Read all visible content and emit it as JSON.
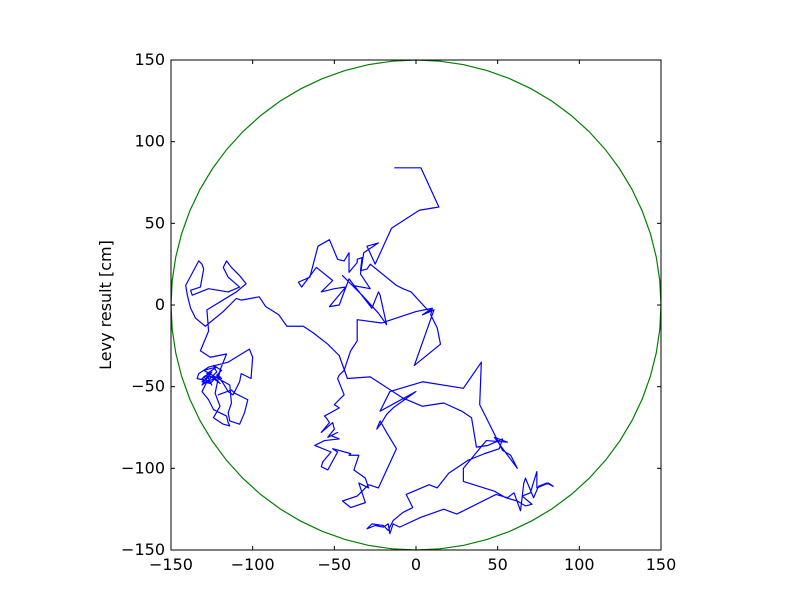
{
  "chart_data": {
    "type": "line",
    "title": "",
    "xlabel": "",
    "ylabel": "Levy result [cm]",
    "xlim": [
      -150,
      150
    ],
    "ylim": [
      -150,
      150
    ],
    "xticks": [
      -150,
      -100,
      -50,
      0,
      50,
      100,
      150
    ],
    "yticks": [
      -150,
      -100,
      -50,
      0,
      50,
      100,
      150
    ],
    "grid": false,
    "legend": "none",
    "series": [
      {
        "kind": "boundary-circle",
        "center": [
          0,
          0
        ],
        "radius": 150,
        "color": "#008000"
      },
      {
        "kind": "random-walk",
        "color": "#0000ff",
        "points": [
          [
            -13,
            84
          ],
          [
            3,
            84
          ],
          [
            14,
            60
          ],
          [
            2,
            58
          ],
          [
            -15,
            47
          ],
          [
            -25,
            25
          ],
          [
            -30,
            36
          ],
          [
            -23,
            38
          ],
          [
            -32,
            32
          ],
          [
            -34,
            19
          ],
          [
            -28,
            10
          ],
          [
            -39,
            12
          ],
          [
            -45,
            18
          ],
          [
            -33,
            6
          ],
          [
            -23,
            -5
          ],
          [
            -18,
            -12
          ],
          [
            -22,
            6
          ],
          [
            -23,
            8
          ],
          [
            -27,
            -2
          ],
          [
            -41,
            16
          ],
          [
            -47,
            0
          ],
          [
            -53,
            -1
          ],
          [
            -43,
            11
          ],
          [
            -50,
            10
          ],
          [
            -58,
            8
          ],
          [
            -51,
            15
          ],
          [
            -61,
            23
          ],
          [
            -70,
            11
          ],
          [
            -72,
            14
          ],
          [
            -65,
            17
          ],
          [
            -60,
            36
          ],
          [
            -53,
            40
          ],
          [
            -48,
            28
          ],
          [
            -44,
            27
          ],
          [
            -41,
            32
          ],
          [
            -41,
            20
          ],
          [
            -36,
            26
          ],
          [
            -36,
            28
          ],
          [
            -33,
            29
          ],
          [
            -34,
            21
          ],
          [
            -30,
            22
          ],
          [
            -28,
            25
          ],
          [
            -12,
            12
          ],
          [
            -8,
            10
          ],
          [
            -3,
            8
          ],
          [
            8,
            -4
          ],
          [
            10,
            -2
          ],
          [
            4,
            -6
          ],
          [
            11,
            -3
          ],
          [
            -1,
            -37
          ],
          [
            15,
            -24
          ],
          [
            13,
            -14
          ],
          [
            9,
            -6
          ],
          [
            10,
            -2
          ],
          [
            0,
            -4
          ],
          [
            -21,
            -11
          ],
          [
            -36,
            -9
          ],
          [
            -36,
            -22
          ],
          [
            -40,
            -28
          ],
          [
            -44,
            -40
          ],
          [
            -47,
            -43
          ],
          [
            -48,
            -45
          ],
          [
            -44,
            -55
          ],
          [
            -50,
            -61
          ],
          [
            -47,
            -63
          ],
          [
            -56,
            -68
          ],
          [
            -55,
            -69
          ],
          [
            -53,
            -72
          ],
          [
            -58,
            -78
          ],
          [
            -51,
            -72
          ],
          [
            -50,
            -76
          ],
          [
            -54,
            -81
          ],
          [
            -48,
            -78
          ],
          [
            -52,
            -80
          ],
          [
            -47,
            -82
          ],
          [
            -56,
            -83
          ],
          [
            -62,
            -86
          ],
          [
            -52,
            -90
          ],
          [
            -57,
            -96
          ],
          [
            -58,
            -99
          ],
          [
            -54,
            -101
          ],
          [
            -48,
            -90
          ],
          [
            -51,
            -88
          ],
          [
            -40,
            -91
          ],
          [
            -41,
            -92
          ],
          [
            -35,
            -92
          ],
          [
            -38,
            -101
          ],
          [
            -31,
            -106
          ],
          [
            -29,
            -112
          ],
          [
            -35,
            -109
          ],
          [
            -31,
            -121
          ],
          [
            -40,
            -124
          ],
          [
            -45,
            -120
          ],
          [
            -36,
            -117
          ],
          [
            -29,
            -110
          ],
          [
            -23,
            -112
          ],
          [
            -12,
            -88
          ],
          [
            -18,
            -78
          ],
          [
            -22,
            -71
          ],
          [
            -24,
            -76
          ],
          [
            -21,
            -72
          ],
          [
            -18,
            -67
          ],
          [
            -14,
            -63
          ],
          [
            0,
            -53
          ],
          [
            -22,
            -65
          ],
          [
            -16,
            -53
          ],
          [
            4,
            -47
          ],
          [
            29,
            -51
          ],
          [
            40,
            -35
          ],
          [
            39,
            -61
          ],
          [
            53,
            -89
          ],
          [
            58,
            -92
          ],
          [
            62,
            -100
          ],
          [
            48,
            -81
          ],
          [
            56,
            -84
          ],
          [
            43,
            -83
          ],
          [
            29,
            -100
          ],
          [
            29,
            -108
          ],
          [
            48,
            -114
          ],
          [
            55,
            -118
          ],
          [
            62,
            -120
          ],
          [
            67,
            -123
          ],
          [
            71,
            -122
          ],
          [
            65,
            -117
          ],
          [
            70,
            -115
          ],
          [
            74,
            -102
          ],
          [
            74,
            -112
          ],
          [
            81,
            -109
          ],
          [
            84,
            -111
          ],
          [
            80,
            -109
          ],
          [
            75,
            -111
          ],
          [
            72,
            -118
          ],
          [
            67,
            -106
          ],
          [
            66,
            -109
          ],
          [
            64,
            -126
          ],
          [
            60,
            -115
          ],
          [
            56,
            -118
          ],
          [
            49,
            -116
          ],
          [
            25,
            -128
          ],
          [
            17,
            -125
          ],
          [
            3,
            -130
          ],
          [
            -10,
            -136
          ],
          [
            -14,
            -134
          ],
          [
            -16,
            -140
          ],
          [
            -17,
            -134
          ],
          [
            -20,
            -136
          ],
          [
            -25,
            -135
          ],
          [
            -30,
            -137
          ],
          [
            -27,
            -134
          ],
          [
            -20,
            -135
          ],
          [
            -17,
            -138
          ],
          [
            -14,
            -132
          ],
          [
            -8,
            -127
          ],
          [
            -2,
            -124
          ],
          [
            -6,
            -116
          ],
          [
            1,
            -113
          ],
          [
            8,
            -110
          ],
          [
            13,
            -112
          ],
          [
            20,
            -103
          ],
          [
            32,
            -95
          ],
          [
            42,
            -91
          ],
          [
            51,
            -88
          ],
          [
            53,
            -82
          ],
          [
            44,
            -86
          ],
          [
            37,
            -87
          ],
          [
            34,
            -69
          ],
          [
            28,
            -65
          ],
          [
            17,
            -60
          ],
          [
            4,
            -62
          ],
          [
            -8,
            -57
          ],
          [
            -28,
            -44
          ],
          [
            -42,
            -45
          ],
          [
            -47,
            -31
          ],
          [
            -54,
            -24
          ],
          [
            -63,
            -17
          ],
          [
            -69,
            -13
          ],
          [
            -79,
            -13
          ],
          [
            -84,
            -6
          ],
          [
            -92,
            -1
          ],
          [
            -96,
            5
          ],
          [
            -107,
            3
          ],
          [
            -110,
            4
          ],
          [
            -113,
            1
          ],
          [
            -118,
            -4
          ],
          [
            -129,
            -13
          ],
          [
            -135,
            -8
          ],
          [
            -138,
            -2
          ],
          [
            -140,
            6
          ],
          [
            -141,
            12
          ],
          [
            -133,
            27
          ],
          [
            -131,
            25
          ],
          [
            -130,
            22
          ],
          [
            -132,
            11
          ],
          [
            -138,
            9
          ],
          [
            -137,
            6
          ],
          [
            -127,
            10
          ],
          [
            -115,
            8
          ],
          [
            -108,
            11
          ],
          [
            -115,
            17
          ],
          [
            -118,
            23
          ],
          [
            -116,
            27
          ],
          [
            -113,
            23
          ],
          [
            -108,
            18
          ],
          [
            -104,
            13
          ],
          [
            -110,
            8
          ],
          [
            -128,
            -3
          ],
          [
            -127,
            -16
          ],
          [
            -132,
            -28
          ],
          [
            -126,
            -32
          ],
          [
            -116,
            -30
          ],
          [
            -120,
            -40
          ],
          [
            -123,
            -54
          ],
          [
            -120,
            -62
          ],
          [
            -124,
            -69
          ],
          [
            -118,
            -73
          ],
          [
            -114,
            -74
          ],
          [
            -115,
            -72
          ],
          [
            -116,
            -68
          ],
          [
            -124,
            -64
          ],
          [
            -127,
            -58
          ],
          [
            -131,
            -53
          ],
          [
            -128,
            -47
          ],
          [
            -121,
            -44
          ],
          [
            -118,
            -48
          ],
          [
            -115,
            -53
          ],
          [
            -112,
            -55
          ],
          [
            -108,
            -47
          ],
          [
            -107,
            -42
          ],
          [
            -101,
            -45
          ],
          [
            -100,
            -32
          ],
          [
            -102,
            -27
          ],
          [
            -115,
            -35
          ],
          [
            -127,
            -38
          ],
          [
            -133,
            -42
          ],
          [
            -134,
            -45
          ],
          [
            -130,
            -46
          ],
          [
            -127,
            -47
          ],
          [
            -130,
            -44
          ],
          [
            -125,
            -41
          ],
          [
            -128,
            -45
          ],
          [
            -131,
            -47
          ],
          [
            -126,
            -48
          ],
          [
            -121,
            -43
          ],
          [
            -119,
            -45
          ],
          [
            -122,
            -43
          ],
          [
            -119,
            -40
          ],
          [
            -124,
            -37
          ],
          [
            -122,
            -41
          ],
          [
            -127,
            -46
          ],
          [
            -125,
            -49
          ],
          [
            -128,
            -43
          ],
          [
            -131,
            -45
          ],
          [
            -128,
            -47
          ],
          [
            -131,
            -49
          ],
          [
            -128,
            -44
          ],
          [
            -124,
            -44
          ],
          [
            -120,
            -48
          ],
          [
            -128,
            -42
          ],
          [
            -122,
            -38
          ],
          [
            -130,
            -40
          ],
          [
            -114,
            -49
          ],
          [
            -113,
            -60
          ],
          [
            -114,
            -63
          ],
          [
            -115,
            -66
          ],
          [
            -114,
            -71
          ],
          [
            -108,
            -73
          ],
          [
            -105,
            -66
          ],
          [
            -103,
            -58
          ],
          [
            -111,
            -54
          ],
          [
            -113,
            -52
          ],
          [
            -121,
            -55
          ]
        ]
      }
    ]
  }
}
